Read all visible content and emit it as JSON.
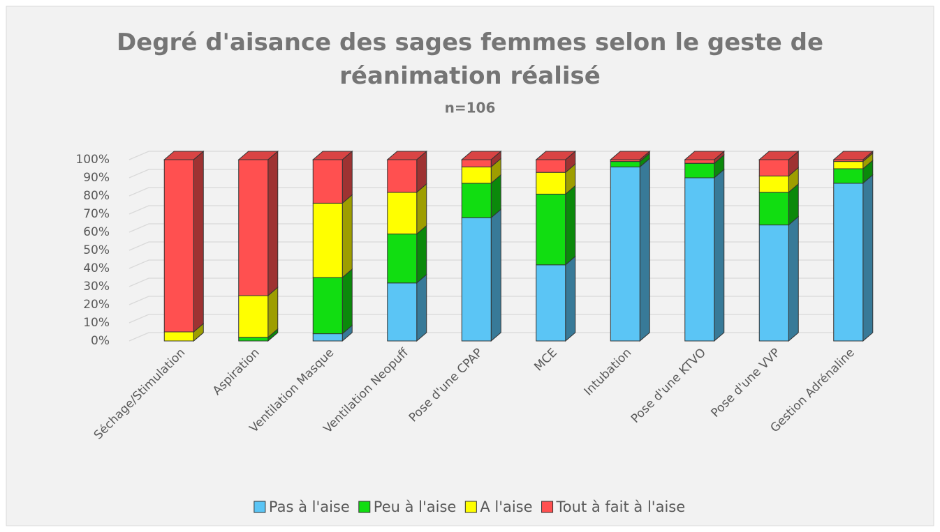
{
  "chart_data": {
    "type": "bar3d_stacked",
    "title": "Degré d'aisance des sages femmes selon le geste de réanimation réalisé",
    "subtitle": "n=106",
    "categories": [
      "Séchage/Stimulation",
      "Aspiration",
      "Ventilation Masque",
      "Ventilation Neopuff",
      "Pose d'une CPAP",
      "MCE",
      "Intubation",
      "Pose d'une KTVO",
      "Pose d'une VVP",
      "Gestion Adrénaline"
    ],
    "series": [
      {
        "name": "Pas à l'aise",
        "color": "#5bc5f5",
        "values": [
          0,
          0,
          4,
          32,
          68,
          42,
          96,
          90,
          64,
          87
        ]
      },
      {
        "name": "Peu à l'aise",
        "color": "#11dd11",
        "values": [
          0,
          2,
          31,
          27,
          19,
          39,
          3,
          8,
          18,
          8
        ]
      },
      {
        "name": "A l'aise",
        "color": "#ffff00",
        "values": [
          5,
          23,
          41,
          23,
          9,
          12,
          0,
          0,
          9,
          4
        ]
      },
      {
        "name": "Tout à fait à l'aise",
        "color": "#ff5050",
        "values": [
          95,
          75,
          24,
          18,
          4,
          7,
          1,
          2,
          9,
          1
        ]
      }
    ],
    "ylim": [
      0,
      100
    ],
    "yticks": [
      {
        "value": 0,
        "label": "0%"
      },
      {
        "value": 10,
        "label": "10%"
      },
      {
        "value": 20,
        "label": "20%"
      },
      {
        "value": 30,
        "label": "30%"
      },
      {
        "value": 40,
        "label": "40%"
      },
      {
        "value": 50,
        "label": "50%"
      },
      {
        "value": 60,
        "label": "60%"
      },
      {
        "value": 70,
        "label": "70%"
      },
      {
        "value": 80,
        "label": "80%"
      },
      {
        "value": 90,
        "label": "90%"
      },
      {
        "value": 100,
        "label": "100%"
      }
    ],
    "grid": true,
    "legend": "bottom"
  }
}
